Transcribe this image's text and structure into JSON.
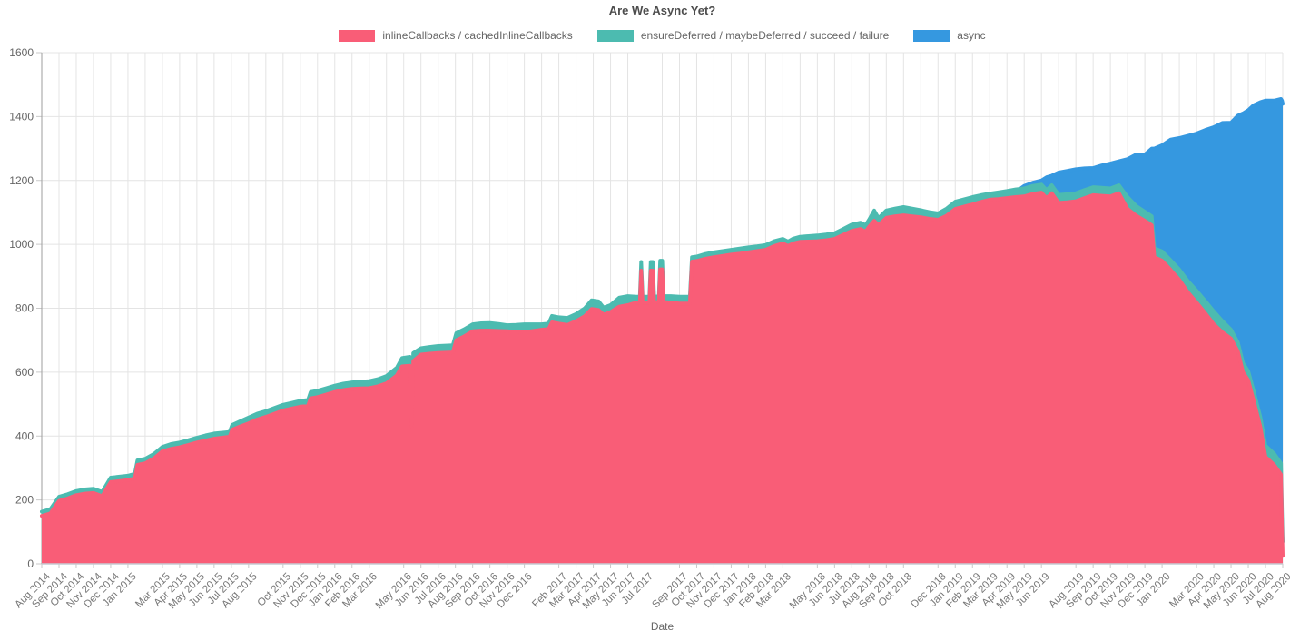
{
  "title": "Are We Async Yet?",
  "legend": [
    {
      "label": "inlineCallbacks / cachedInlineCallbacks",
      "color": "#F95D77"
    },
    {
      "label": "ensureDeferred / maybeDeferred / succeed / failure",
      "color": "#4CBBB0"
    },
    {
      "label": "async",
      "color": "#3598E0"
    }
  ],
  "axes": {
    "y_ticks": [
      0,
      200,
      400,
      600,
      800,
      1000,
      1200,
      1400,
      1600
    ],
    "x_title": "Date",
    "grid_color": "#E4E4E4",
    "y_axis_color": "#9E9E9E",
    "x_axis_color": "#C6CBD4",
    "tick_color": "#C9C9C9"
  },
  "chart_data": {
    "type": "area",
    "stacked": true,
    "title": "Are We Async Yet?",
    "xlabel": "Date",
    "ylabel": "",
    "ylim": [
      0,
      1600
    ],
    "grid": true,
    "legend_position": "top",
    "x_domain": [
      "Aug 2014",
      "Aug 2020"
    ],
    "x_unit_note": "m = months since Aug 2014; values are counts of call sites",
    "series": [
      {
        "name": "inlineCallbacks / cachedInlineCallbacks",
        "color": "#F95D77"
      },
      {
        "name": "ensureDeferred / maybeDeferred / succeed / failure",
        "color": "#4CBBB0"
      },
      {
        "name": "async",
        "color": "#3598E0"
      }
    ],
    "points_format": "[m, inlineCallbacks, ensureDeferred_band, async_band]",
    "points": [
      [
        0,
        150,
        13,
        0
      ],
      [
        0.5,
        158,
        13,
        0
      ],
      [
        1,
        197,
        13,
        0
      ],
      [
        1.5,
        205,
        13,
        0
      ],
      [
        2,
        215,
        13,
        0
      ],
      [
        2.5,
        220,
        13,
        0
      ],
      [
        3,
        222,
        13,
        0
      ],
      [
        3.5,
        212,
        13,
        0
      ],
      [
        4,
        256,
        14,
        0
      ],
      [
        5,
        262,
        14,
        0
      ],
      [
        5.4,
        268,
        14,
        0
      ],
      [
        5.55,
        310,
        14,
        0
      ],
      [
        6,
        315,
        14,
        0
      ],
      [
        6.5,
        330,
        14,
        0
      ],
      [
        7,
        352,
        14,
        0
      ],
      [
        7.5,
        360,
        15,
        0
      ],
      [
        8,
        365,
        15,
        0
      ],
      [
        8.5,
        372,
        15,
        0
      ],
      [
        9,
        380,
        15,
        0
      ],
      [
        9.5,
        386,
        16,
        0
      ],
      [
        10,
        392,
        16,
        0
      ],
      [
        10.9,
        398,
        15,
        0
      ],
      [
        11.05,
        420,
        15,
        0
      ],
      [
        11.5,
        430,
        16,
        0
      ],
      [
        12,
        440,
        18,
        0
      ],
      [
        12.5,
        452,
        18,
        0
      ],
      [
        13,
        460,
        18,
        0
      ],
      [
        13.5,
        470,
        18,
        0
      ],
      [
        14,
        480,
        18,
        0
      ],
      [
        14.5,
        486,
        18,
        0
      ],
      [
        15,
        492,
        18,
        0
      ],
      [
        15.45,
        495,
        18,
        0
      ],
      [
        15.6,
        518,
        20,
        0
      ],
      [
        16,
        522,
        20,
        0
      ],
      [
        16.5,
        530,
        20,
        0
      ],
      [
        17,
        538,
        20,
        0
      ],
      [
        17.5,
        544,
        20,
        0
      ],
      [
        18,
        548,
        20,
        0
      ],
      [
        18.5,
        549,
        21,
        0
      ],
      [
        19,
        550,
        22,
        0
      ],
      [
        19.5,
        556,
        22,
        0
      ],
      [
        20,
        565,
        23,
        0
      ],
      [
        20.6,
        590,
        24,
        0
      ],
      [
        20.9,
        618,
        26,
        0
      ],
      [
        21.35,
        620,
        28,
        0
      ],
      [
        21.45,
        430,
        25,
        0
      ],
      [
        21.55,
        635,
        25,
        0
      ],
      [
        22,
        655,
        20,
        0
      ],
      [
        22.5,
        658,
        21,
        0
      ],
      [
        23,
        660,
        22,
        0
      ],
      [
        23.85,
        662,
        22,
        0
      ],
      [
        24.05,
        700,
        22,
        0
      ],
      [
        24.5,
        712,
        22,
        0
      ],
      [
        25,
        728,
        22,
        0
      ],
      [
        25.5,
        730,
        23,
        0
      ],
      [
        26,
        730,
        24,
        0
      ],
      [
        26.5,
        729,
        22,
        0
      ],
      [
        27,
        728,
        19,
        0
      ],
      [
        27.5,
        726,
        22,
        0
      ],
      [
        28,
        725,
        25,
        0
      ],
      [
        28.5,
        729,
        21,
        0
      ],
      [
        29,
        733,
        17,
        0
      ],
      [
        29.4,
        735,
        17,
        0
      ],
      [
        29.6,
        756,
        20,
        0
      ],
      [
        30,
        752,
        20,
        0
      ],
      [
        30.5,
        748,
        22,
        0
      ],
      [
        31,
        760,
        22,
        0
      ],
      [
        31.5,
        775,
        25,
        0
      ],
      [
        31.9,
        798,
        27,
        0
      ],
      [
        32.3,
        795,
        27,
        0
      ],
      [
        32.6,
        780,
        22,
        0
      ],
      [
        33,
        788,
        22,
        0
      ],
      [
        33.5,
        805,
        28,
        0
      ],
      [
        34,
        810,
        28,
        0
      ],
      [
        34.5,
        818,
        18,
        0
      ],
      [
        34.7,
        818,
        18,
        0
      ],
      [
        34.78,
        918,
        27,
        0
      ],
      [
        34.86,
        818,
        18,
        0
      ],
      [
        35.25,
        818,
        18,
        0
      ],
      [
        35.33,
        918,
        27,
        0
      ],
      [
        35.45,
        918,
        27,
        0
      ],
      [
        35.53,
        818,
        18,
        0
      ],
      [
        35.8,
        820,
        18,
        0
      ],
      [
        35.88,
        922,
        27,
        0
      ],
      [
        36,
        922,
        27,
        0
      ],
      [
        36.08,
        820,
        18,
        0
      ],
      [
        36.5,
        818,
        20,
        0
      ],
      [
        37,
        815,
        21,
        0
      ],
      [
        37.6,
        815,
        21,
        0
      ],
      [
        37.72,
        946,
        14,
        0
      ],
      [
        38,
        948,
        14,
        0
      ],
      [
        38.5,
        955,
        15,
        0
      ],
      [
        39,
        960,
        15,
        0
      ],
      [
        39.5,
        964,
        15,
        0
      ],
      [
        40,
        968,
        15,
        0
      ],
      [
        40.5,
        971,
        16,
        0
      ],
      [
        41,
        975,
        16,
        0
      ],
      [
        41.5,
        979,
        15,
        0
      ],
      [
        42,
        983,
        15,
        0
      ],
      [
        42.5,
        995,
        15,
        0
      ],
      [
        43,
        1003,
        14,
        0
      ],
      [
        43.3,
        995,
        14,
        0
      ],
      [
        43.6,
        1003,
        15,
        0
      ],
      [
        44,
        1008,
        16,
        0
      ],
      [
        44.5,
        1009,
        17,
        0
      ],
      [
        45,
        1010,
        18,
        0
      ],
      [
        45.5,
        1013,
        18,
        0
      ],
      [
        46,
        1017,
        18,
        0
      ],
      [
        46.5,
        1030,
        18,
        0
      ],
      [
        47,
        1042,
        20,
        0
      ],
      [
        47.5,
        1048,
        20,
        0
      ],
      [
        47.8,
        1040,
        20,
        0
      ],
      [
        48,
        1055,
        22,
        0
      ],
      [
        48.3,
        1074,
        32,
        0
      ],
      [
        48.55,
        1060,
        22,
        0
      ],
      [
        49,
        1083,
        23,
        0
      ],
      [
        49.5,
        1088,
        24,
        0
      ],
      [
        50,
        1091,
        26,
        0
      ],
      [
        50.5,
        1088,
        24,
        0
      ],
      [
        51,
        1085,
        22,
        0
      ],
      [
        51.5,
        1080,
        21,
        0
      ],
      [
        52,
        1077,
        20,
        0
      ],
      [
        52.5,
        1090,
        22,
        0
      ],
      [
        53,
        1111,
        23,
        0
      ],
      [
        53.5,
        1118,
        23,
        0
      ],
      [
        54,
        1125,
        23,
        0
      ],
      [
        54.5,
        1133,
        21,
        0
      ],
      [
        55,
        1140,
        19,
        0
      ],
      [
        55.5,
        1142,
        21,
        0
      ],
      [
        56,
        1145,
        22,
        0
      ],
      [
        56.5,
        1148,
        24,
        0
      ],
      [
        57,
        1150,
        25,
        8
      ],
      [
        57.5,
        1158,
        25,
        10
      ],
      [
        58,
        1162,
        25,
        13
      ],
      [
        58.3,
        1145,
        25,
        40
      ],
      [
        58.6,
        1160,
        25,
        30
      ],
      [
        59,
        1130,
        25,
        70
      ],
      [
        59.5,
        1132,
        25,
        73
      ],
      [
        60,
        1135,
        25,
        75
      ],
      [
        60.5,
        1145,
        25,
        68
      ],
      [
        61,
        1154,
        25,
        60
      ],
      [
        61.5,
        1152,
        25,
        70
      ],
      [
        62,
        1150,
        25,
        78
      ],
      [
        62.5,
        1160,
        25,
        75
      ],
      [
        63,
        1111,
        37,
        119
      ],
      [
        63.5,
        1090,
        30,
        161
      ],
      [
        64,
        1074,
        28,
        179
      ],
      [
        64.4,
        1060,
        28,
        212
      ],
      [
        64.55,
        960,
        28,
        312
      ],
      [
        65,
        949,
        29,
        332
      ],
      [
        65.5,
        920,
        30,
        378
      ],
      [
        66,
        889,
        32,
        412
      ],
      [
        66.5,
        850,
        35,
        455
      ],
      [
        67,
        818,
        37,
        492
      ],
      [
        67.5,
        785,
        38,
        535
      ],
      [
        68,
        750,
        40,
        577
      ],
      [
        68.5,
        725,
        35,
        620
      ],
      [
        69,
        705,
        28,
        648
      ],
      [
        69.4,
        665,
        28,
        710
      ],
      [
        69.7,
        600,
        28,
        782
      ],
      [
        70,
        575,
        28,
        817
      ],
      [
        70.3,
        514,
        30,
        891
      ],
      [
        70.7,
        430,
        30,
        985
      ],
      [
        71,
        335,
        35,
        1080
      ],
      [
        71.5,
        310,
        35,
        1105
      ],
      [
        71.9,
        280,
        35,
        1140
      ],
      [
        71.96,
        120,
        40,
        1290
      ],
      [
        72,
        25,
        45,
        1370
      ]
    ],
    "x_ticks": [
      {
        "m": 0,
        "label": "Aug 2014"
      },
      {
        "m": 1,
        "label": "Sep 2014"
      },
      {
        "m": 2,
        "label": "Oct 2014"
      },
      {
        "m": 3,
        "label": "Nov 2014"
      },
      {
        "m": 4,
        "label": "Dec 2014"
      },
      {
        "m": 5,
        "label": "Jan 2015"
      },
      {
        "m": 7,
        "label": "Mar 2015"
      },
      {
        "m": 8,
        "label": "Apr 2015"
      },
      {
        "m": 9,
        "label": "May 2015"
      },
      {
        "m": 10,
        "label": "Jun 2015"
      },
      {
        "m": 11,
        "label": "Jul 2015"
      },
      {
        "m": 12,
        "label": "Aug 2015"
      },
      {
        "m": 14,
        "label": "Oct 2015"
      },
      {
        "m": 15,
        "label": "Nov 2015"
      },
      {
        "m": 16,
        "label": "Dec 2015"
      },
      {
        "m": 17,
        "label": "Jan 2016"
      },
      {
        "m": 18,
        "label": "Feb 2016"
      },
      {
        "m": 19,
        "label": "Mar 2016"
      },
      {
        "m": 21,
        "label": "May 2016"
      },
      {
        "m": 22,
        "label": "Jun 2016"
      },
      {
        "m": 23,
        "label": "Jul 2016"
      },
      {
        "m": 24,
        "label": "Aug 2016"
      },
      {
        "m": 25,
        "label": "Sep 2016"
      },
      {
        "m": 26,
        "label": "Oct 2016"
      },
      {
        "m": 27,
        "label": "Nov 2016"
      },
      {
        "m": 28,
        "label": "Dec 2016"
      },
      {
        "m": 30,
        "label": "Feb 2017"
      },
      {
        "m": 31,
        "label": "Mar 2017"
      },
      {
        "m": 32,
        "label": "Apr 2017"
      },
      {
        "m": 33,
        "label": "May 2017"
      },
      {
        "m": 34,
        "label": "Jun 2017"
      },
      {
        "m": 35,
        "label": "Jul 2017"
      },
      {
        "m": 37,
        "label": "Sep 2017"
      },
      {
        "m": 38,
        "label": "Oct 2017"
      },
      {
        "m": 39,
        "label": "Nov 2017"
      },
      {
        "m": 40,
        "label": "Dec 2017"
      },
      {
        "m": 41,
        "label": "Jan 2018"
      },
      {
        "m": 42,
        "label": "Feb 2018"
      },
      {
        "m": 43,
        "label": "Mar 2018"
      },
      {
        "m": 45,
        "label": "May 2018"
      },
      {
        "m": 46,
        "label": "Jun 2018"
      },
      {
        "m": 47,
        "label": "Jul 2018"
      },
      {
        "m": 48,
        "label": "Aug 2018"
      },
      {
        "m": 49,
        "label": "Sep 2018"
      },
      {
        "m": 50,
        "label": "Oct 2018"
      },
      {
        "m": 52,
        "label": "Dec 2018"
      },
      {
        "m": 53,
        "label": "Jan 2019"
      },
      {
        "m": 54,
        "label": "Feb 2019"
      },
      {
        "m": 55,
        "label": "Mar 2019"
      },
      {
        "m": 56,
        "label": "Apr 2019"
      },
      {
        "m": 57,
        "label": "May 2019"
      },
      {
        "m": 58,
        "label": "Jun 2019"
      },
      {
        "m": 60,
        "label": "Aug 2019"
      },
      {
        "m": 61,
        "label": "Sep 2019"
      },
      {
        "m": 62,
        "label": "Oct 2019"
      },
      {
        "m": 63,
        "label": "Nov 2019"
      },
      {
        "m": 64,
        "label": "Dec 2019"
      },
      {
        "m": 65,
        "label": "Jan 2020"
      },
      {
        "m": 67,
        "label": "Mar 2020"
      },
      {
        "m": 68,
        "label": "Apr 2020"
      },
      {
        "m": 69,
        "label": "May 2020"
      },
      {
        "m": 70,
        "label": "Jun 2020"
      },
      {
        "m": 71,
        "label": "Jul 2020"
      },
      {
        "m": 72,
        "label": "Aug 2020"
      }
    ]
  }
}
